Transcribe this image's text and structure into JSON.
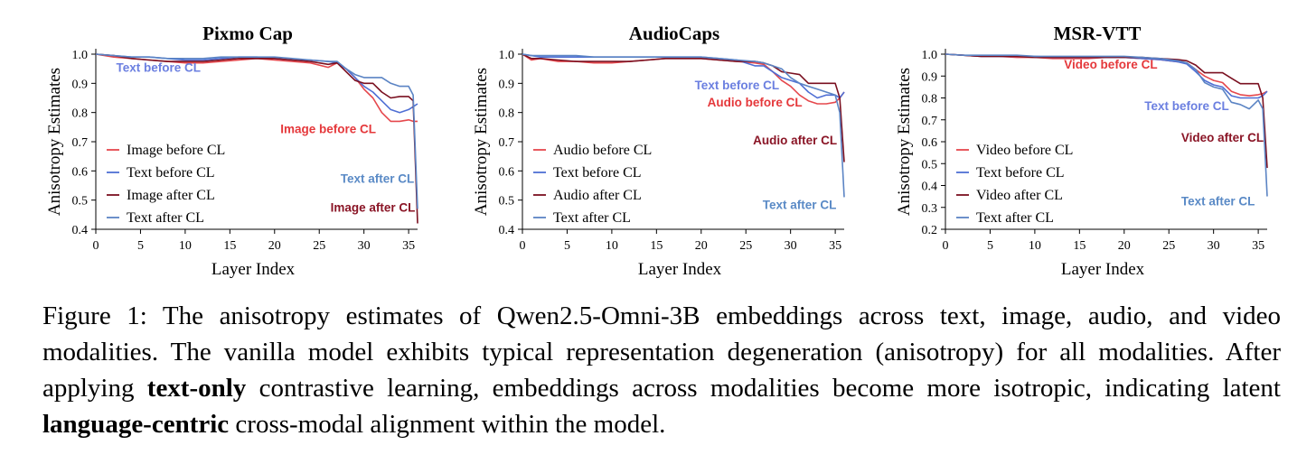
{
  "colors": {
    "image_before": "#e5484d",
    "text_before": "#4f6fd4",
    "image_after": "#7a1020",
    "text_after": "#5b84c4",
    "label_blue": "#6b7fe0",
    "label_red": "#e5383b",
    "label_dark": "#8a1526",
    "label_steel": "#5a8ac6"
  },
  "chart_data": [
    {
      "type": "line",
      "title": "Pixmo Cap",
      "xlabel": "Layer Index",
      "ylabel": "Anisotropy Estimates",
      "xlim": [
        0,
        36
      ],
      "ylim": [
        0.4,
        1.0
      ],
      "xticks": [
        "0",
        "5",
        "10",
        "15",
        "20",
        "25",
        "30",
        "35"
      ],
      "yticks": [
        "0.4",
        "0.5",
        "0.6",
        "0.7",
        "0.8",
        "0.9",
        "1.0"
      ],
      "legend_position": "bottom-left",
      "x": [
        0,
        2,
        4,
        6,
        8,
        10,
        12,
        14,
        16,
        18,
        20,
        22,
        24,
        26,
        27,
        28,
        29,
        30,
        31,
        32,
        33,
        34,
        35,
        35.5,
        36
      ],
      "series": [
        {
          "name": "Image before CL",
          "color_key": "image_before",
          "values": [
            1.0,
            0.99,
            0.985,
            0.98,
            0.975,
            0.97,
            0.97,
            0.975,
            0.98,
            0.985,
            0.98,
            0.975,
            0.97,
            0.955,
            0.97,
            0.95,
            0.92,
            0.88,
            0.85,
            0.8,
            0.77,
            0.77,
            0.775,
            0.77,
            0.77
          ]
        },
        {
          "name": "Text before CL",
          "color_key": "text_before",
          "values": [
            1.0,
            0.995,
            0.99,
            0.99,
            0.985,
            0.98,
            0.98,
            0.985,
            0.99,
            0.99,
            0.985,
            0.98,
            0.98,
            0.975,
            0.97,
            0.95,
            0.92,
            0.89,
            0.87,
            0.84,
            0.81,
            0.8,
            0.81,
            0.82,
            0.83
          ]
        },
        {
          "name": "Image after CL",
          "color_key": "image_after",
          "values": [
            1.0,
            0.995,
            0.985,
            0.98,
            0.975,
            0.975,
            0.975,
            0.98,
            0.985,
            0.985,
            0.985,
            0.98,
            0.975,
            0.965,
            0.97,
            0.94,
            0.91,
            0.9,
            0.9,
            0.87,
            0.85,
            0.855,
            0.855,
            0.84,
            0.42
          ]
        },
        {
          "name": "Text after CL",
          "color_key": "text_after",
          "values": [
            1.0,
            0.995,
            0.99,
            0.99,
            0.985,
            0.985,
            0.985,
            0.99,
            0.99,
            0.99,
            0.99,
            0.985,
            0.98,
            0.975,
            0.975,
            0.95,
            0.93,
            0.92,
            0.92,
            0.92,
            0.9,
            0.89,
            0.89,
            0.86,
            0.47
          ]
        }
      ],
      "annotations": [
        {
          "text": "Text before CL",
          "color_key": "label_blue",
          "x": 7,
          "y": 0.94
        },
        {
          "text": "Image before CL",
          "color_key": "label_red",
          "x": 26,
          "y": 0.73
        },
        {
          "text": "Text after CL",
          "color_key": "label_steel",
          "x": 31.5,
          "y": 0.56
        },
        {
          "text": "Image after CL",
          "color_key": "label_dark",
          "x": 31,
          "y": 0.46
        }
      ]
    },
    {
      "type": "line",
      "title": "AudioCaps",
      "xlabel": "Layer Index",
      "ylabel": "Anisotropy Estimates",
      "xlim": [
        0,
        36
      ],
      "ylim": [
        0.4,
        1.0
      ],
      "xticks": [
        "0",
        "5",
        "10",
        "15",
        "20",
        "25",
        "30",
        "35"
      ],
      "yticks": [
        "0.4",
        "0.5",
        "0.6",
        "0.7",
        "0.8",
        "0.9",
        "1.0"
      ],
      "legend_position": "bottom-left",
      "x": [
        0,
        1,
        2,
        4,
        6,
        8,
        10,
        12,
        14,
        16,
        18,
        20,
        22,
        24,
        26,
        27,
        28,
        29,
        30,
        31,
        32,
        33,
        34,
        35,
        35.5,
        36
      ],
      "series": [
        {
          "name": "Audio before CL",
          "color_key": "image_before",
          "values": [
            1.0,
            0.98,
            0.985,
            0.975,
            0.975,
            0.97,
            0.97,
            0.975,
            0.98,
            0.985,
            0.985,
            0.985,
            0.98,
            0.975,
            0.97,
            0.965,
            0.94,
            0.91,
            0.89,
            0.86,
            0.84,
            0.83,
            0.83,
            0.835,
            0.85,
            0.87
          ]
        },
        {
          "name": "Text before CL",
          "color_key": "text_before",
          "values": [
            1.0,
            0.995,
            0.99,
            0.99,
            0.99,
            0.99,
            0.99,
            0.99,
            0.99,
            0.99,
            0.99,
            0.99,
            0.985,
            0.98,
            0.96,
            0.96,
            0.94,
            0.92,
            0.91,
            0.9,
            0.87,
            0.85,
            0.86,
            0.86,
            0.85,
            0.87
          ]
        },
        {
          "name": "Audio after CL",
          "color_key": "image_after",
          "values": [
            1.0,
            0.985,
            0.985,
            0.98,
            0.975,
            0.975,
            0.975,
            0.975,
            0.98,
            0.985,
            0.985,
            0.985,
            0.98,
            0.975,
            0.975,
            0.97,
            0.96,
            0.94,
            0.935,
            0.93,
            0.9,
            0.9,
            0.9,
            0.9,
            0.85,
            0.63
          ]
        },
        {
          "name": "Text after CL",
          "color_key": "text_after",
          "values": [
            1.0,
            0.995,
            0.995,
            0.995,
            0.995,
            0.99,
            0.99,
            0.99,
            0.99,
            0.99,
            0.99,
            0.99,
            0.985,
            0.98,
            0.975,
            0.97,
            0.96,
            0.95,
            0.92,
            0.9,
            0.89,
            0.88,
            0.87,
            0.86,
            0.8,
            0.51
          ]
        }
      ],
      "annotations": [
        {
          "text": "Text before CL",
          "color_key": "label_blue",
          "x": 24,
          "y": 0.88
        },
        {
          "text": "Audio before CL",
          "color_key": "label_red",
          "x": 26,
          "y": 0.82
        },
        {
          "text": "Audio after CL",
          "color_key": "label_dark",
          "x": 30.5,
          "y": 0.69
        },
        {
          "text": "Text after CL",
          "color_key": "label_steel",
          "x": 31,
          "y": 0.47
        }
      ]
    },
    {
      "type": "line",
      "title": "MSR-VTT",
      "xlabel": "Layer Index",
      "ylabel": "Anisotropy Estimates",
      "xlim": [
        0,
        36
      ],
      "ylim": [
        0.2,
        1.0
      ],
      "xticks": [
        "0",
        "5",
        "10",
        "15",
        "20",
        "25",
        "30",
        "35"
      ],
      "yticks": [
        "0.2",
        "0.3",
        "0.4",
        "0.5",
        "0.6",
        "0.7",
        "0.8",
        "0.9",
        "1.0"
      ],
      "legend_position": "bottom-left",
      "x": [
        0,
        2,
        4,
        6,
        8,
        10,
        12,
        14,
        16,
        18,
        20,
        22,
        24,
        26,
        27,
        28,
        29,
        30,
        31,
        32,
        33,
        34,
        35,
        35.5,
        36
      ],
      "series": [
        {
          "name": "Video before CL",
          "color_key": "image_before",
          "values": [
            1.0,
            0.995,
            0.99,
            0.99,
            0.985,
            0.985,
            0.98,
            0.98,
            0.98,
            0.985,
            0.985,
            0.98,
            0.975,
            0.965,
            0.96,
            0.93,
            0.9,
            0.88,
            0.87,
            0.83,
            0.815,
            0.81,
            0.815,
            0.82,
            0.83
          ]
        },
        {
          "name": "Text before CL",
          "color_key": "text_before",
          "values": [
            1.0,
            0.995,
            0.99,
            0.99,
            0.99,
            0.99,
            0.985,
            0.985,
            0.985,
            0.985,
            0.985,
            0.98,
            0.975,
            0.965,
            0.955,
            0.92,
            0.88,
            0.86,
            0.85,
            0.81,
            0.8,
            0.8,
            0.8,
            0.81,
            0.83
          ]
        },
        {
          "name": "Video after CL",
          "color_key": "image_after",
          "values": [
            1.0,
            0.995,
            0.99,
            0.99,
            0.99,
            0.985,
            0.985,
            0.985,
            0.985,
            0.985,
            0.985,
            0.985,
            0.98,
            0.975,
            0.97,
            0.95,
            0.915,
            0.915,
            0.915,
            0.89,
            0.865,
            0.865,
            0.865,
            0.8,
            0.48
          ]
        },
        {
          "name": "Text after CL",
          "color_key": "text_after",
          "values": [
            1.0,
            0.995,
            0.995,
            0.995,
            0.995,
            0.99,
            0.99,
            0.99,
            0.99,
            0.99,
            0.99,
            0.985,
            0.98,
            0.97,
            0.96,
            0.93,
            0.87,
            0.85,
            0.84,
            0.78,
            0.77,
            0.75,
            0.79,
            0.75,
            0.35
          ]
        }
      ],
      "annotations": [
        {
          "text": "Video before CL",
          "color_key": "label_red",
          "x": 18.5,
          "y": 0.935
        },
        {
          "text": "Text before CL",
          "color_key": "label_blue",
          "x": 27,
          "y": 0.745
        },
        {
          "text": "Video after CL",
          "color_key": "label_dark",
          "x": 31,
          "y": 0.6
        },
        {
          "text": "Text after CL",
          "color_key": "label_steel",
          "x": 30.5,
          "y": 0.31
        }
      ]
    }
  ],
  "caption": {
    "part1": "Figure 1: The anisotropy estimates of Qwen2.5-Omni-3B embeddings across text, image, audio, and video modalities. The vanilla model exhibits typical representation degeneration (anisotropy) for all modalities. After applying ",
    "bold1": "text-only",
    "part2": " contrastive learning, embeddings across modalities become more isotropic, indicating latent ",
    "bold2": "language-centric",
    "part3": " cross-modal alignment within the model."
  }
}
